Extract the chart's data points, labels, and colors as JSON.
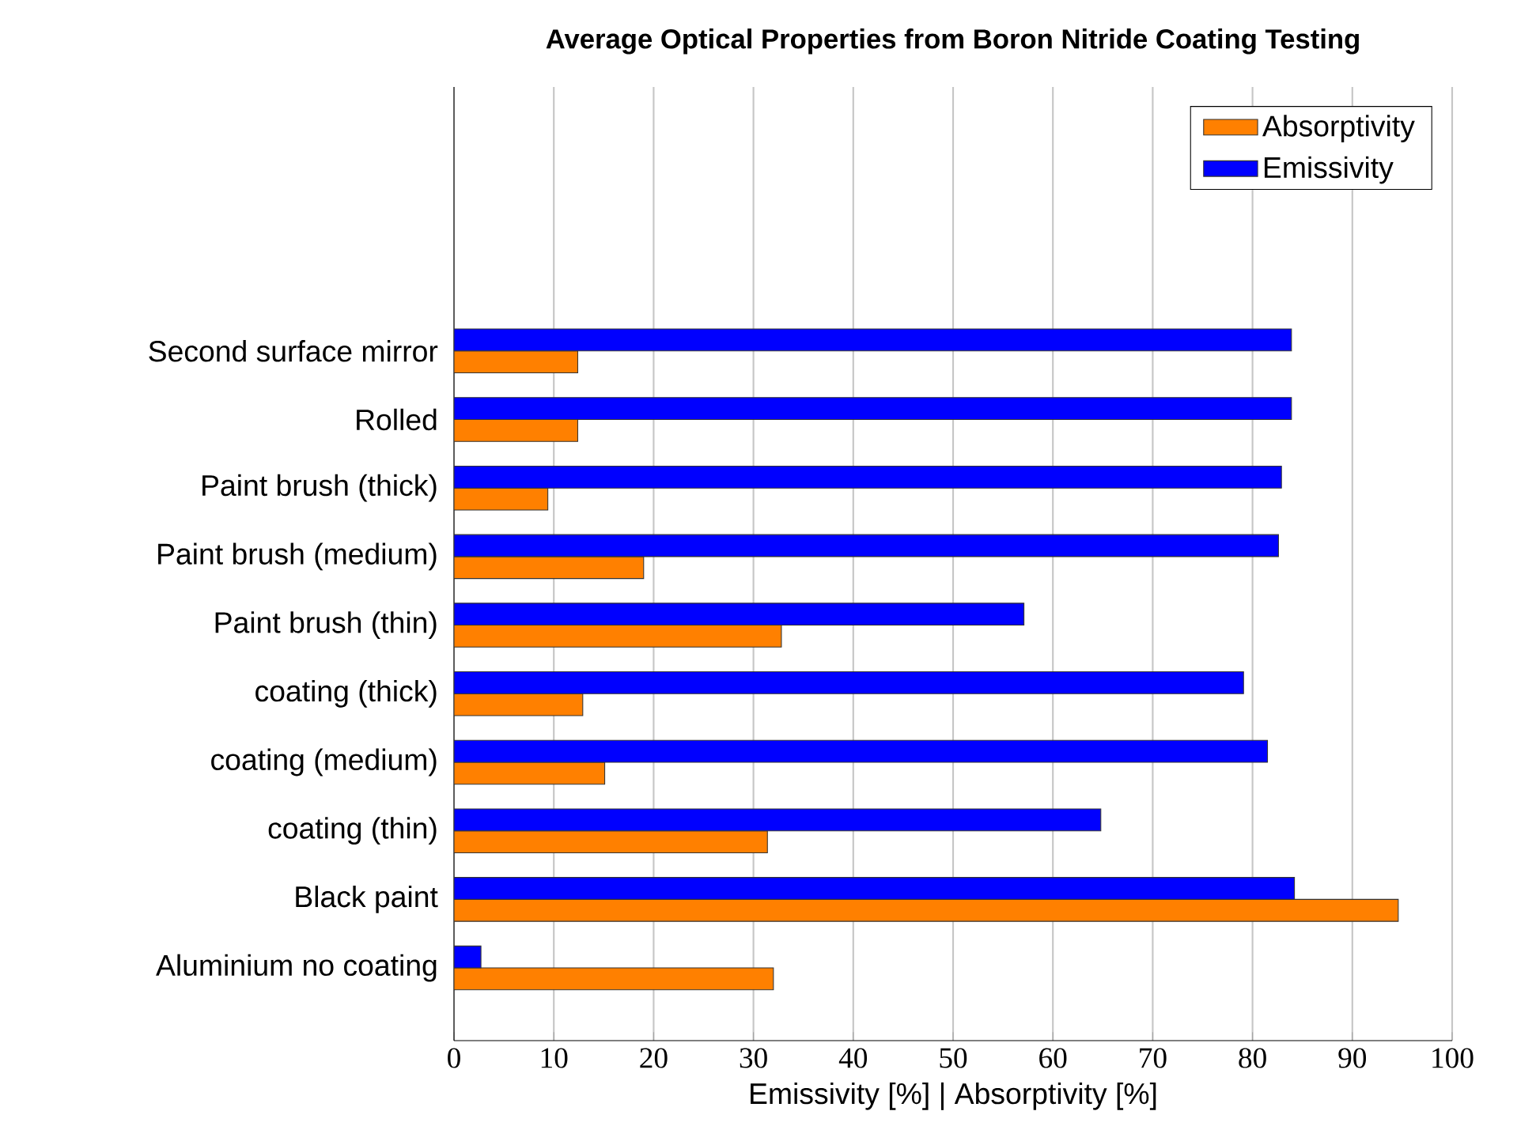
{
  "chart_data": {
    "type": "bar",
    "orientation": "horizontal",
    "title": "Average Optical Properties from Boron Nitride Coating Testing",
    "xlabel": "Emissivity [%] | Absorptivity [%]",
    "categories": [
      "Second surface mirror",
      "Rolled",
      "Paint brush (thick)",
      "Paint brush (medium)",
      "Paint brush (thin)",
      "coating (thick)",
      "coating (medium)",
      "coating (thin)",
      "Black paint",
      "Aluminium no coating"
    ],
    "series": [
      {
        "name": "Absorptivity",
        "color": "#ff8000",
        "values": [
          12.4,
          12.4,
          9.4,
          19.0,
          32.8,
          12.9,
          15.1,
          31.4,
          94.6,
          32.0
        ]
      },
      {
        "name": "Emissivity",
        "color": "#0000ff",
        "values": [
          83.9,
          83.9,
          82.9,
          82.6,
          57.1,
          79.1,
          81.5,
          64.8,
          84.2,
          2.7
        ]
      }
    ],
    "xlim": [
      0,
      100
    ],
    "xticks": [
      0,
      10,
      20,
      30,
      40,
      50,
      60,
      70,
      80,
      90,
      100
    ],
    "grid": "x",
    "legend": "top right"
  }
}
